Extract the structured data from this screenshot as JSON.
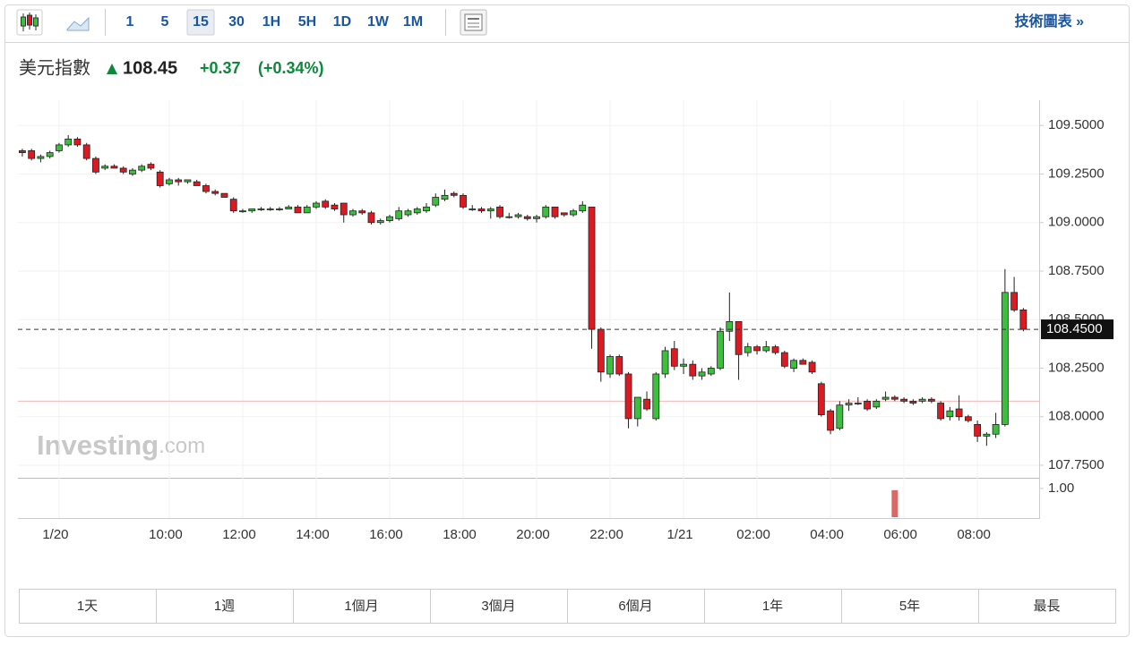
{
  "toolbar": {
    "intervals": [
      "1",
      "5",
      "15",
      "30",
      "1H",
      "5H",
      "1D",
      "1W",
      "1M"
    ],
    "selected": "15",
    "link": "技術圖表 »"
  },
  "header": {
    "name": "美元指數",
    "price": "108.45",
    "change": "+0.37",
    "change_pct": "(+0.34%)"
  },
  "ranges": [
    "1天",
    "1週",
    "1個月",
    "3個月",
    "6個月",
    "1年",
    "5年",
    "最長"
  ],
  "watermark": {
    "brand": "Investing",
    "suffix": ".com"
  },
  "chart_data": {
    "type": "candlestick",
    "up_color": "#3cbf3c",
    "down_color": "#dd1a22",
    "grid": true,
    "x": [
      6,
      6.25,
      6.5,
      6.75,
      7,
      7.25,
      7.5,
      7.75,
      8,
      8.25,
      8.5,
      8.75,
      9,
      9.25,
      9.5,
      9.75,
      10,
      10.25,
      10.5,
      10.75,
      11,
      11.25,
      11.5,
      11.75,
      12,
      12.25,
      12.5,
      12.75,
      13,
      13.25,
      13.5,
      13.75,
      14,
      14.25,
      14.5,
      14.75,
      15,
      15.25,
      15.5,
      15.75,
      16,
      16.25,
      16.5,
      16.75,
      17,
      17.25,
      17.5,
      17.75,
      18,
      18.25,
      18.5,
      18.75,
      19,
      19.25,
      19.5,
      19.75,
      20,
      20.25,
      20.5,
      20.75,
      21,
      21.25,
      21.5,
      21.75,
      22,
      22.25,
      22.5,
      22.75,
      23,
      23.25,
      23.5,
      23.75,
      24,
      24.25,
      24.5,
      24.75,
      25,
      25.25,
      25.5,
      25.75,
      26,
      26.25,
      26.5,
      26.75,
      27,
      27.25,
      27.5,
      27.75,
      28,
      28.25,
      28.5,
      28.75,
      29,
      29.25,
      29.5,
      29.75,
      30,
      30.25,
      30.5,
      30.75,
      31,
      31.25,
      31.5,
      31.75,
      32,
      32.25,
      32.5,
      32.75,
      33,
      33.25
    ],
    "open": [
      109.37,
      109.37,
      109.33,
      109.34,
      109.37,
      109.4,
      109.43,
      109.4,
      109.33,
      109.28,
      109.29,
      109.28,
      109.25,
      109.27,
      109.3,
      109.26,
      109.2,
      109.22,
      109.21,
      109.21,
      109.19,
      109.16,
      109.15,
      109.12,
      109.06,
      109.06,
      109.07,
      109.07,
      109.07,
      109.07,
      109.08,
      109.05,
      109.08,
      109.11,
      109.09,
      109.1,
      109.04,
      109.06,
      109.05,
      109.0,
      109.01,
      109.02,
      109.04,
      109.05,
      109.06,
      109.09,
      109.12,
      109.15,
      109.14,
      109.07,
      109.07,
      109.06,
      109.08,
      109.03,
      109.03,
      109.03,
      109.02,
      109.03,
      109.08,
      109.05,
      109.04,
      109.06,
      109.08,
      108.45,
      108.22,
      108.31,
      108.22,
      107.99,
      108.09,
      107.99,
      108.22,
      108.35,
      108.26,
      108.27,
      108.21,
      108.22,
      108.25,
      108.44,
      108.49,
      108.33,
      108.36,
      108.34,
      108.36,
      108.33,
      108.25,
      108.29,
      108.28,
      108.17,
      108.03,
      107.94,
      108.06,
      108.07,
      108.08,
      108.05,
      108.09,
      108.1,
      108.09,
      108.08,
      108.08,
      108.09,
      108.07,
      108.0,
      108.04,
      108.0,
      107.96,
      107.9,
      107.91,
      107.96,
      108.64,
      108.55
    ],
    "high": [
      109.38,
      109.38,
      109.35,
      109.37,
      109.41,
      109.45,
      109.44,
      109.41,
      109.34,
      109.3,
      109.3,
      109.29,
      109.28,
      109.3,
      109.31,
      109.27,
      109.23,
      109.23,
      109.22,
      109.22,
      109.2,
      109.17,
      109.15,
      109.13,
      109.07,
      109.07,
      109.08,
      109.08,
      109.08,
      109.09,
      109.09,
      109.09,
      109.11,
      109.12,
      109.1,
      109.1,
      109.07,
      109.07,
      109.06,
      109.02,
      109.04,
      109.08,
      109.07,
      109.08,
      109.1,
      109.15,
      109.17,
      109.16,
      109.15,
      109.09,
      109.08,
      109.08,
      109.09,
      109.05,
      109.05,
      109.04,
      109.04,
      109.09,
      109.08,
      109.05,
      109.07,
      109.11,
      109.08,
      108.46,
      108.32,
      108.32,
      108.23,
      108.1,
      108.13,
      108.23,
      108.36,
      108.39,
      108.3,
      108.29,
      108.25,
      108.26,
      108.46,
      108.64,
      108.49,
      108.38,
      108.37,
      108.39,
      108.37,
      108.34,
      108.3,
      108.3,
      108.29,
      108.18,
      108.04,
      108.08,
      108.09,
      108.1,
      108.09,
      108.09,
      108.13,
      108.11,
      108.1,
      108.09,
      108.1,
      108.1,
      108.08,
      108.05,
      108.11,
      108.01,
      107.98,
      107.92,
      108.02,
      108.76,
      108.72,
      108.56
    ],
    "low": [
      109.34,
      109.32,
      109.31,
      109.33,
      109.36,
      109.39,
      109.39,
      109.32,
      109.25,
      109.27,
      109.28,
      109.25,
      109.24,
      109.26,
      109.27,
      109.18,
      109.19,
      109.19,
      109.2,
      109.19,
      109.15,
      109.14,
      109.13,
      109.05,
      109.05,
      109.05,
      109.06,
      109.06,
      109.06,
      109.07,
      109.05,
      109.05,
      109.07,
      109.07,
      109.06,
      109.0,
      109.03,
      109.04,
      108.99,
      108.99,
      109.0,
      109.01,
      109.03,
      109.04,
      109.05,
      109.08,
      109.11,
      109.13,
      109.07,
      109.06,
      109.05,
      109.02,
      109.02,
      109.02,
      109.02,
      109.01,
      109.0,
      109.02,
      109.02,
      109.03,
      109.03,
      109.05,
      108.35,
      108.18,
      108.2,
      108.21,
      107.94,
      107.95,
      108.03,
      107.98,
      108.2,
      108.24,
      108.22,
      108.19,
      108.19,
      108.21,
      108.24,
      108.39,
      108.19,
      108.31,
      108.32,
      108.33,
      108.32,
      108.25,
      108.23,
      108.27,
      108.22,
      108.0,
      107.91,
      107.93,
      108.03,
      108.06,
      108.03,
      108.04,
      108.08,
      108.08,
      108.07,
      108.06,
      108.07,
      108.07,
      107.98,
      107.98,
      107.98,
      107.97,
      107.87,
      107.85,
      107.89,
      107.95,
      108.54,
      108.44
    ],
    "close": [
      109.36,
      109.33,
      109.34,
      109.36,
      109.4,
      109.43,
      109.4,
      109.33,
      109.26,
      109.29,
      109.28,
      109.26,
      109.27,
      109.29,
      109.28,
      109.19,
      109.22,
      109.21,
      109.22,
      109.19,
      109.16,
      109.15,
      109.13,
      109.06,
      109.06,
      109.07,
      109.07,
      109.07,
      109.07,
      109.08,
      109.05,
      109.08,
      109.1,
      109.08,
      109.07,
      109.04,
      109.06,
      109.05,
      109.0,
      109.01,
      109.03,
      109.06,
      109.06,
      109.07,
      109.08,
      109.13,
      109.14,
      109.14,
      109.08,
      109.07,
      109.06,
      109.07,
      109.03,
      109.03,
      109.04,
      109.02,
      109.03,
      109.08,
      109.03,
      109.04,
      109.06,
      109.09,
      108.45,
      108.23,
      108.31,
      108.22,
      107.99,
      108.1,
      108.04,
      108.22,
      108.34,
      108.26,
      108.27,
      108.21,
      108.23,
      108.25,
      108.44,
      108.49,
      108.32,
      108.36,
      108.34,
      108.36,
      108.33,
      108.26,
      108.29,
      108.27,
      108.23,
      108.01,
      107.93,
      108.06,
      108.07,
      108.07,
      108.04,
      108.08,
      108.1,
      108.09,
      108.08,
      108.07,
      108.09,
      108.08,
      107.99,
      108.03,
      108.0,
      107.98,
      107.9,
      107.91,
      107.96,
      108.64,
      108.55,
      108.45
    ],
    "xlim": [
      5.88,
      33.68
    ],
    "xticks": [
      {
        "value": 7,
        "label": "1/20"
      },
      {
        "value": 10,
        "label": "10:00"
      },
      {
        "value": 12,
        "label": "12:00"
      },
      {
        "value": 14,
        "label": "14:00"
      },
      {
        "value": 16,
        "label": "16:00"
      },
      {
        "value": 18,
        "label": "18:00"
      },
      {
        "value": 20,
        "label": "20:00"
      },
      {
        "value": 22,
        "label": "22:00"
      },
      {
        "value": 24,
        "label": "1/21"
      },
      {
        "value": 26,
        "label": "02:00"
      },
      {
        "value": 28,
        "label": "04:00"
      },
      {
        "value": 30,
        "label": "06:00"
      },
      {
        "value": 32,
        "label": "08:00"
      }
    ],
    "ylim": [
      107.69,
      109.63
    ],
    "yticks": [
      {
        "value": 107.75,
        "label": "107.7500"
      },
      {
        "value": 108,
        "label": "108.0000"
      },
      {
        "value": 108.25,
        "label": "108.2500"
      },
      {
        "value": 108.5,
        "label": "108.5000"
      },
      {
        "value": 108.75,
        "label": "108.7500"
      },
      {
        "value": 109,
        "label": "109.0000"
      },
      {
        "value": 109.25,
        "label": "109.2500"
      },
      {
        "value": 109.5,
        "label": "109.5000"
      }
    ],
    "last_price": {
      "value": 108.45,
      "label": "108.4500"
    },
    "prev_close": 108.08,
    "volume": {
      "x": [
        29.75
      ],
      "values": [
        0.94
      ],
      "color": "#e06666",
      "ylim": [
        0,
        1.34
      ],
      "yticks": [
        {
          "value": 1,
          "label": "1.00"
        }
      ]
    }
  }
}
